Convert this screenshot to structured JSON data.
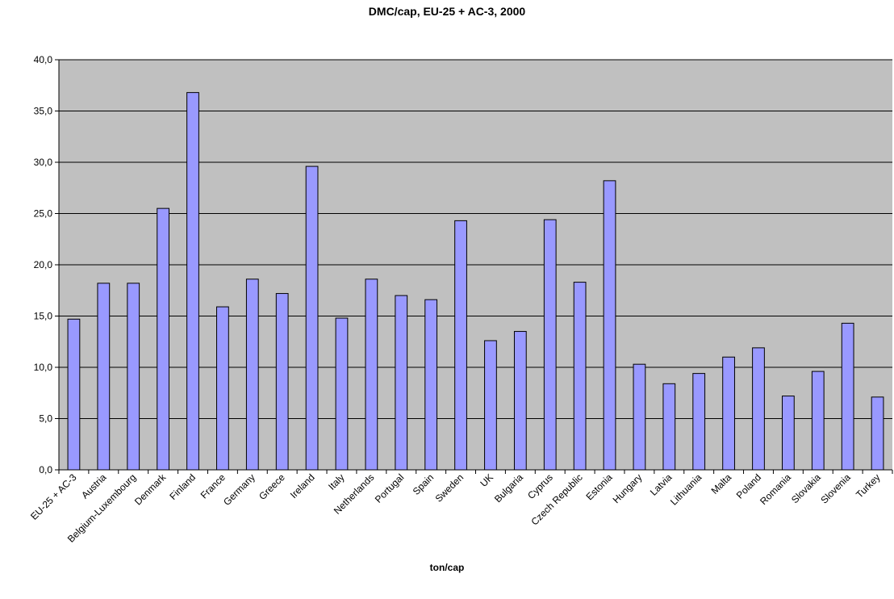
{
  "chart_data": {
    "type": "bar",
    "title": "DMC/cap, EU-25 + AC-3, 2000",
    "xlabel": "ton/cap",
    "ylabel": "",
    "ylim": [
      0,
      40
    ],
    "yticks": [
      "0,0",
      "5,0",
      "10,0",
      "15,0",
      "20,0",
      "25,0",
      "30,0",
      "35,0",
      "40,0"
    ],
    "grid": true,
    "legend": "none",
    "colors": {
      "bar": "#9999ff",
      "plot_bg": "#c0c0c0",
      "grid": "#000000"
    },
    "categories": [
      "EU-25 + AC-3",
      "Austria",
      "Belgium-Luxembourg",
      "Denmark",
      "Finland",
      "France",
      "Germany",
      "Greece",
      "Ireland",
      "Italy",
      "Netherlands",
      "Portugal",
      "Spain",
      "Sweden",
      "UK",
      "Bulgaria",
      "Cyprus",
      "Czech Republic",
      "Estonia",
      "Hungary",
      "Latvia",
      "Lithuania",
      "Malta",
      "Poland",
      "Romania",
      "Slovakia",
      "Slovenia",
      "Turkey"
    ],
    "values": [
      14.7,
      18.2,
      18.2,
      25.5,
      36.8,
      15.9,
      18.6,
      17.2,
      29.6,
      14.8,
      18.6,
      17.0,
      16.6,
      24.3,
      12.6,
      13.5,
      24.4,
      18.3,
      28.2,
      10.3,
      8.4,
      9.4,
      11.0,
      11.9,
      7.2,
      9.6,
      14.3,
      7.1
    ]
  }
}
